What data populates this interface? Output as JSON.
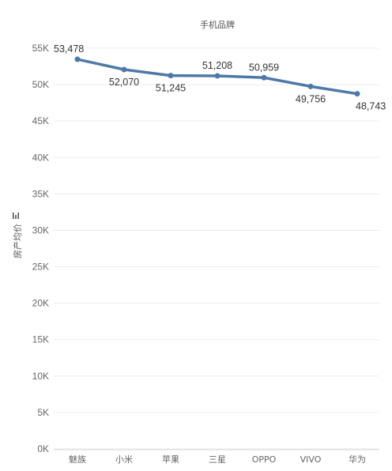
{
  "chart_data": {
    "type": "line",
    "title": "手机品牌",
    "xlabel": "",
    "ylabel": "房产均价",
    "categories": [
      "魅族",
      "小米",
      "苹果",
      "三星",
      "OPPO",
      "VIVO",
      "华为"
    ],
    "series": [
      {
        "values": [
          53478,
          52070,
          51245,
          51208,
          50959,
          49756,
          48743
        ]
      }
    ],
    "data_labels": [
      "53,478",
      "52,070",
      "51,245",
      "51,208",
      "50,959",
      "49,756",
      "48,743"
    ],
    "y_ticks": [
      "0K",
      "5K",
      "10K",
      "15K",
      "20K",
      "25K",
      "30K",
      "35K",
      "40K",
      "45K",
      "50K",
      "55K"
    ],
    "ylim": [
      0,
      55000
    ],
    "grid": true,
    "line_color": "#4e79a7",
    "ylabel_icon": "bar-chart-icon"
  }
}
